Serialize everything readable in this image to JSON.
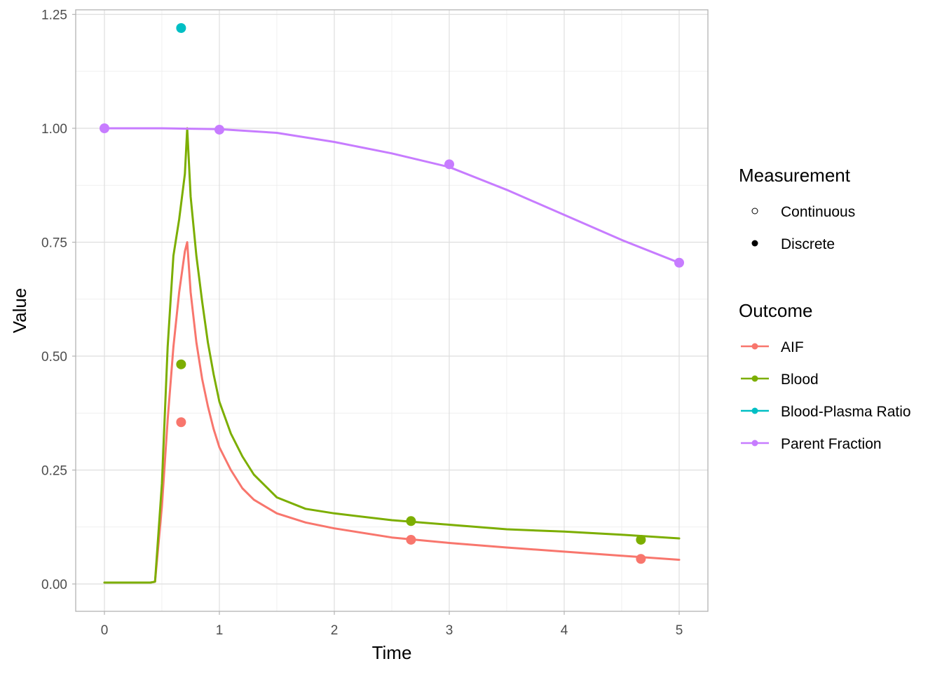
{
  "chart_data": {
    "type": "line",
    "xlabel": "Time",
    "ylabel": "Value",
    "xlim": [
      -0.25,
      5.25
    ],
    "ylim": [
      -0.06,
      1.26
    ],
    "x_ticks": [
      0,
      1,
      2,
      3,
      4,
      5
    ],
    "x_tick_labels": [
      "0",
      "1",
      "2",
      "3",
      "4",
      "5"
    ],
    "y_ticks": [
      0,
      0.25,
      0.5,
      0.75,
      1.0,
      1.25
    ],
    "y_tick_labels": [
      "0.00",
      "0.25",
      "0.50",
      "0.75",
      "1.00",
      "1.25"
    ],
    "grid": true,
    "colors": {
      "AIF": "#F8766D",
      "Blood": "#7CAE00",
      "Blood-Plasma Ratio": "#00BFC4",
      "Parent Fraction": "#C77CFF"
    },
    "legend": {
      "placement": "right",
      "measurement_title": "Measurement",
      "measurement_items": [
        "Continuous",
        "Discrete"
      ],
      "outcome_title": "Outcome",
      "outcome_items": [
        "AIF",
        "Blood",
        "Blood-Plasma Ratio",
        "Parent Fraction"
      ]
    },
    "series": [
      {
        "name": "AIF",
        "line": {
          "x": [
            0,
            0.1,
            0.2,
            0.3,
            0.4,
            0.44,
            0.5,
            0.55,
            0.6,
            0.65,
            0.7,
            0.72,
            0.75,
            0.8,
            0.85,
            0.9,
            0.95,
            1.0,
            1.1,
            1.2,
            1.3,
            1.5,
            1.75,
            2.0,
            2.5,
            3.0,
            3.5,
            4.0,
            4.5,
            5.0
          ],
          "y": [
            0.003,
            0.003,
            0.003,
            0.003,
            0.003,
            0.005,
            0.17,
            0.36,
            0.52,
            0.64,
            0.73,
            0.75,
            0.64,
            0.53,
            0.45,
            0.39,
            0.34,
            0.3,
            0.25,
            0.21,
            0.185,
            0.155,
            0.135,
            0.122,
            0.102,
            0.09,
            0.08,
            0.071,
            0.062,
            0.053
          ]
        },
        "discrete": {
          "x": [
            0.667,
            2.667,
            4.667
          ],
          "y": [
            0.355,
            0.097,
            0.055
          ]
        }
      },
      {
        "name": "Blood",
        "line": {
          "x": [
            0,
            0.1,
            0.2,
            0.3,
            0.4,
            0.44,
            0.5,
            0.55,
            0.6,
            0.65,
            0.7,
            0.72,
            0.75,
            0.8,
            0.85,
            0.9,
            0.95,
            1.0,
            1.1,
            1.2,
            1.3,
            1.5,
            1.75,
            2.0,
            2.5,
            3.0,
            3.5,
            4.0,
            4.5,
            5.0
          ],
          "y": [
            0.003,
            0.003,
            0.003,
            0.003,
            0.003,
            0.005,
            0.22,
            0.52,
            0.72,
            0.8,
            0.9,
            1.0,
            0.85,
            0.72,
            0.62,
            0.53,
            0.46,
            0.4,
            0.33,
            0.28,
            0.24,
            0.19,
            0.165,
            0.155,
            0.14,
            0.13,
            0.12,
            0.115,
            0.108,
            0.1
          ]
        },
        "discrete": {
          "x": [
            0.667,
            2.667,
            4.667
          ],
          "y": [
            0.482,
            0.138,
            0.097
          ]
        }
      },
      {
        "name": "Blood-Plasma Ratio",
        "discrete": {
          "x": [
            0.667
          ],
          "y": [
            1.22
          ]
        }
      },
      {
        "name": "Parent Fraction",
        "line": {
          "x": [
            0,
            0.5,
            1.0,
            1.5,
            2.0,
            2.5,
            3.0,
            3.5,
            4.0,
            4.5,
            5.0
          ],
          "y": [
            1.0,
            1.0,
            0.998,
            0.99,
            0.97,
            0.945,
            0.915,
            0.865,
            0.81,
            0.755,
            0.705
          ]
        },
        "discrete": {
          "x": [
            0,
            1,
            3,
            5
          ],
          "y": [
            1.0,
            0.997,
            0.921,
            0.705
          ]
        }
      }
    ]
  }
}
